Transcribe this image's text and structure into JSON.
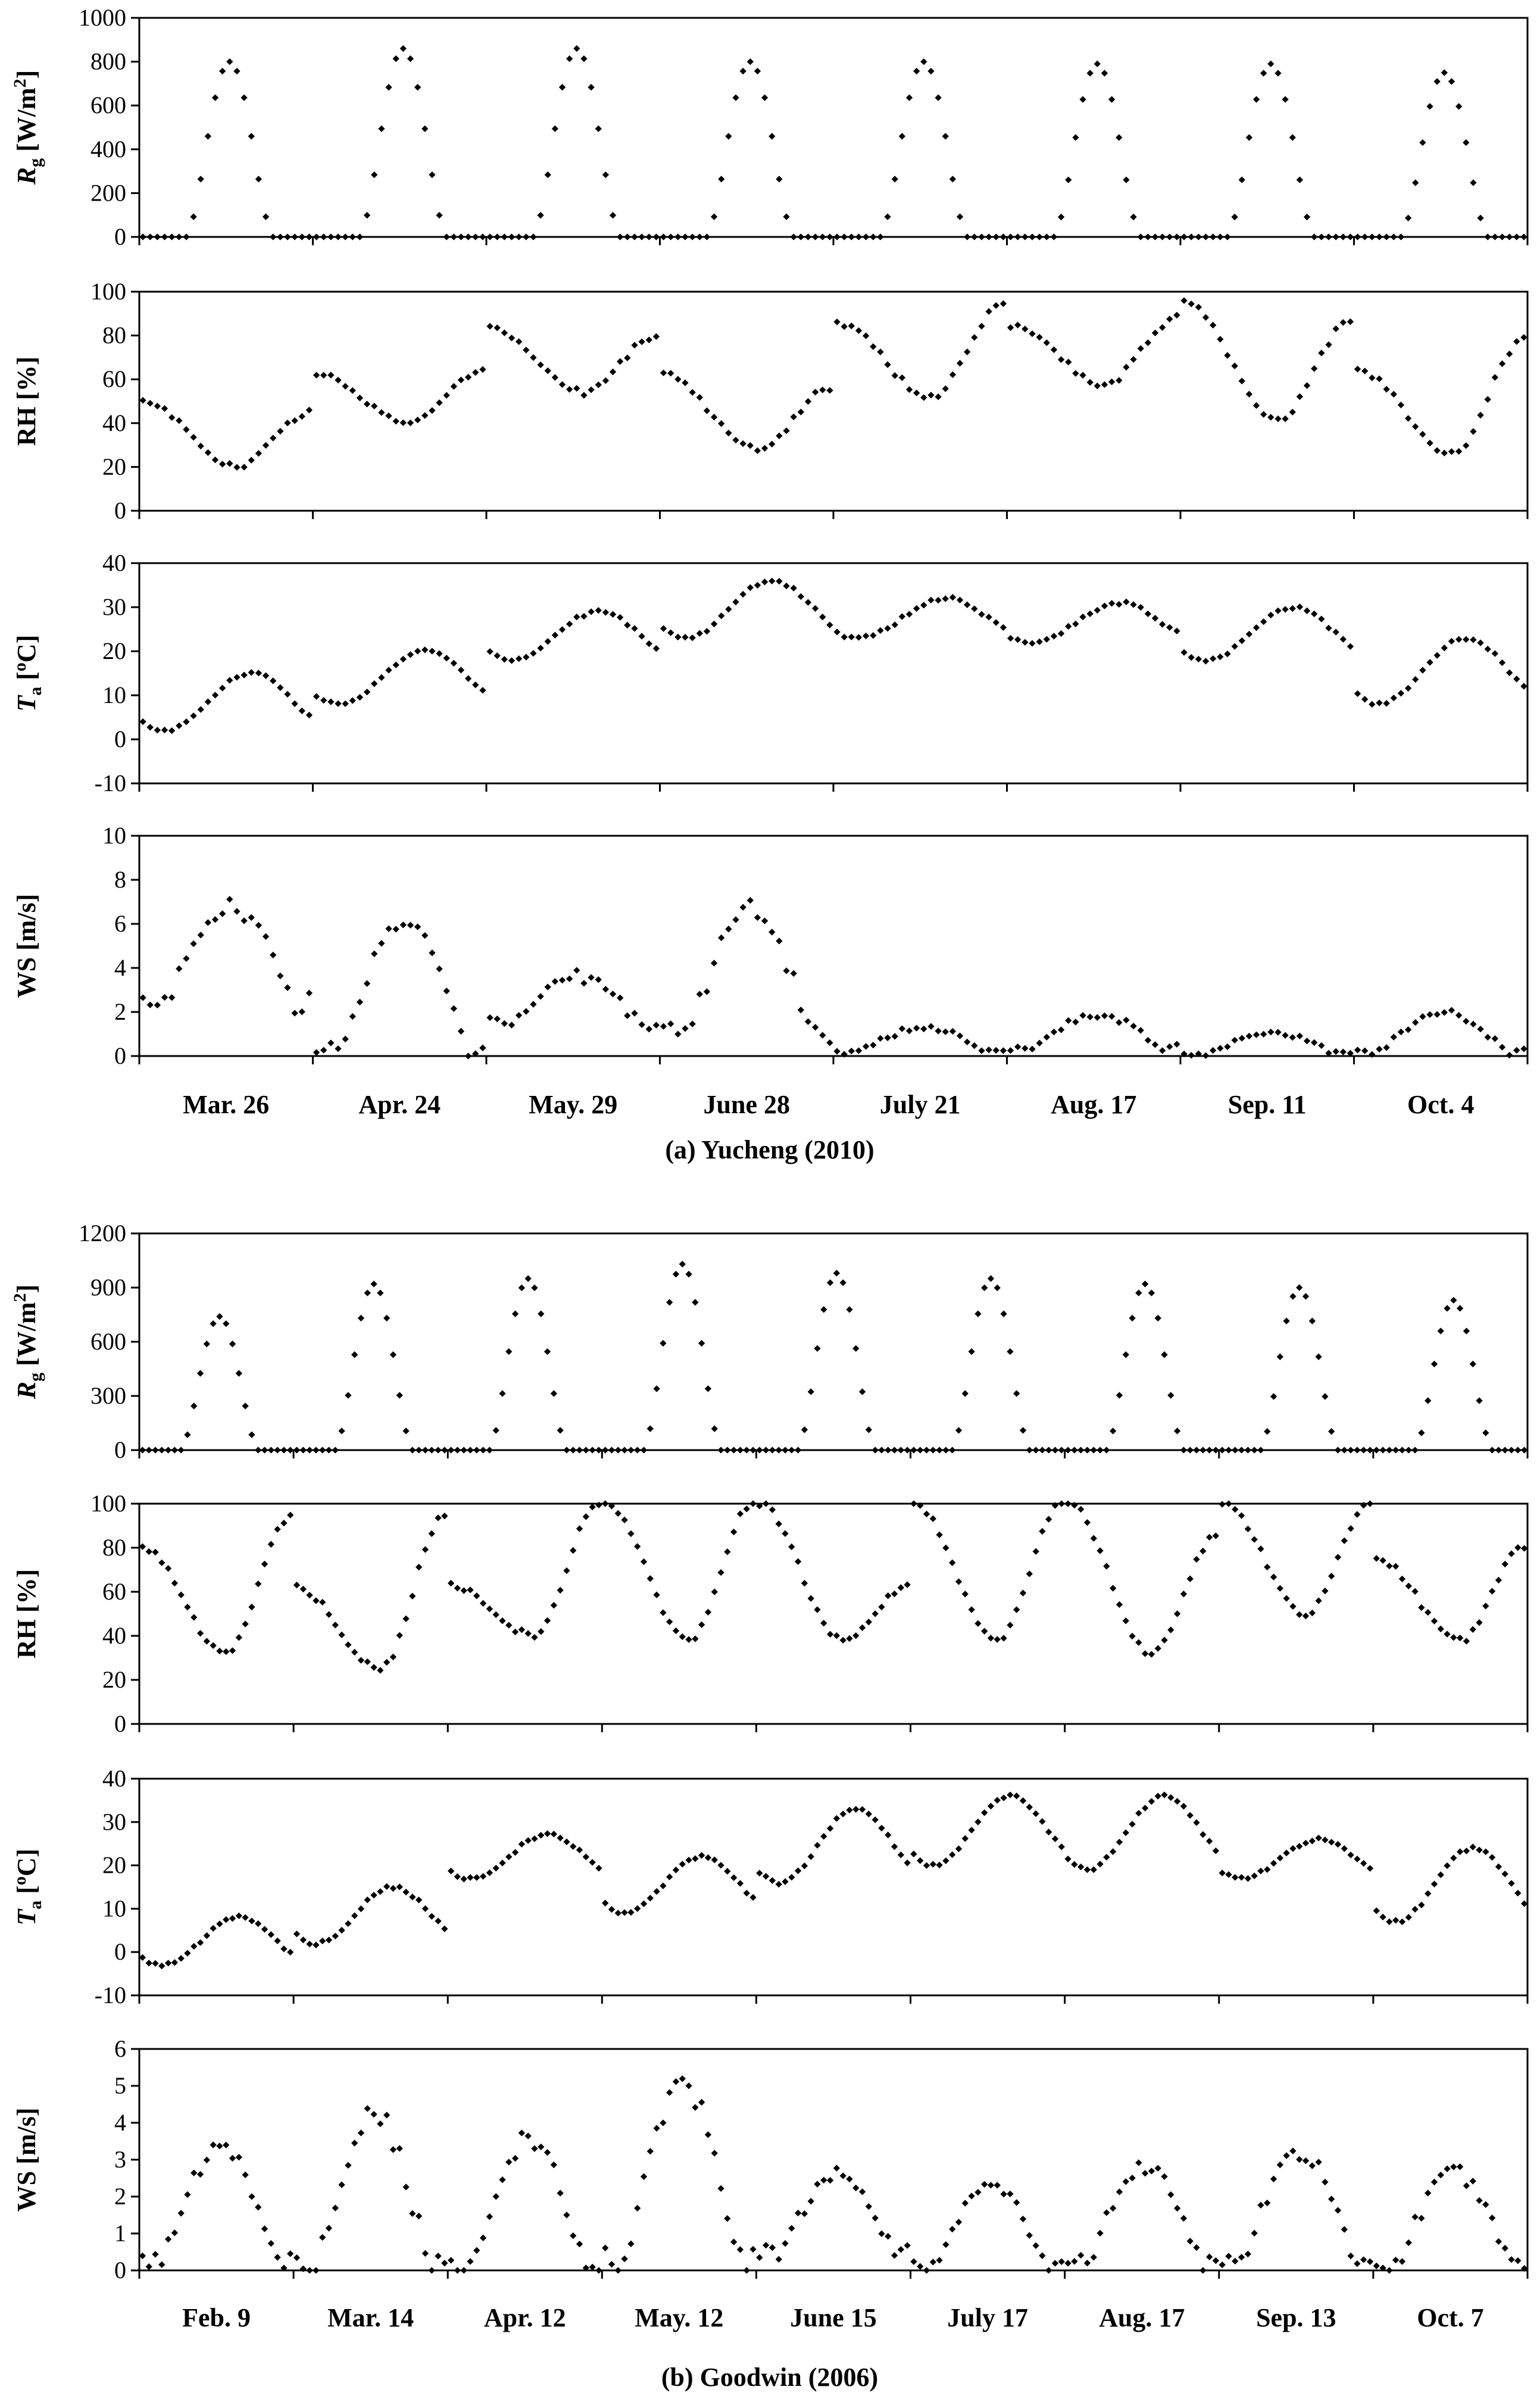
{
  "chart_data": [
    {
      "type": "scatter",
      "title": "(a) Yucheng (2010)",
      "day_labels": [
        "Mar. 26",
        "Apr. 24",
        "May. 29",
        "June 28",
        "July 21",
        "Aug. 17",
        "Sep. 11",
        "Oct. 4"
      ],
      "x": "hour of record (8 days × 24 h)",
      "panels": [
        {
          "key": "rg",
          "ylabel_main": "R",
          "ylabel_sub": "g",
          "ylabel_unit": " [W/m",
          "ylabel_sup": "2",
          "ylabel_close": "]",
          "ylim": [
            0,
            1000
          ],
          "yticks": [
            "0",
            "200",
            "400",
            "600",
            "800",
            "1000"
          ],
          "series": [
            {
              "name": "Rg",
              "daily_peaks": [
                800,
                860,
                860,
                800,
                800,
                790,
                790,
                750
              ]
            }
          ]
        },
        {
          "key": "rh",
          "ylabel_text": "RH [%]",
          "ylim": [
            0,
            100
          ],
          "yticks": [
            "0",
            "20",
            "40",
            "60",
            "80",
            "100"
          ],
          "series": [
            {
              "name": "RH",
              "daily_start": [
                50,
                62,
                83,
                62,
                86,
                85,
                96,
                64
              ],
              "daily_min": [
                20,
                40,
                54,
                28,
                52,
                58,
                42,
                26
              ],
              "daily_end": [
                45,
                64,
                80,
                56,
                94,
                88,
                86,
                78
              ]
            }
          ]
        },
        {
          "key": "ta",
          "ylabel_main": "T",
          "ylabel_sub": "a",
          "ylabel_unit": " [",
          "ylabel_sup": "o",
          "ylabel_close": "C]",
          "ylim": [
            -10,
            40
          ],
          "yticks": [
            "-10",
            "0",
            "10",
            "20",
            "30",
            "40"
          ],
          "series": [
            {
              "name": "Ta",
              "daily_min": [
                2,
                8,
                18,
                23,
                23,
                22,
                18,
                8
              ],
              "daily_max": [
                15,
                20,
                29,
                36,
                32,
                31,
                30,
                23
              ]
            }
          ]
        },
        {
          "key": "ws",
          "ylabel_text": "WS [m/s]",
          "ylim": [
            0,
            10
          ],
          "yticks": [
            "0",
            "2",
            "4",
            "6",
            "8",
            "10"
          ],
          "series": [
            {
              "name": "WS",
              "daily_peak": [
                6.7,
                6.0,
                3.6,
                6.6,
                1.3,
                1.9,
                1.1,
                2.0
              ],
              "daily_base": [
                2.5,
                0.2,
                1.5,
                1.0,
                0.2,
                0.4,
                0.1,
                0.2
              ]
            }
          ]
        }
      ]
    },
    {
      "type": "scatter",
      "title": "(b) Goodwin (2006)",
      "day_labels": [
        "Feb. 9",
        "Mar. 14",
        "Apr. 12",
        "May. 12",
        "June 15",
        "July 17",
        "Aug. 17",
        "Sep. 13",
        "Oct. 7"
      ],
      "x": "hour of record (9 days × 24 h)",
      "panels": [
        {
          "key": "rg",
          "ylabel_main": "R",
          "ylabel_sub": "g",
          "ylabel_unit": " [W/m",
          "ylabel_sup": "2",
          "ylabel_close": "]",
          "ylim": [
            0,
            1200
          ],
          "yticks": [
            "0",
            "300",
            "600",
            "900",
            "1200"
          ],
          "series": [
            {
              "name": "Rg",
              "daily_peaks": [
                740,
                920,
                950,
                1030,
                980,
                950,
                920,
                900,
                830
              ]
            }
          ]
        },
        {
          "key": "rh",
          "ylabel_text": "RH [%]",
          "ylim": [
            0,
            100
          ],
          "yticks": [
            "0",
            "20",
            "40",
            "60",
            "80",
            "100"
          ],
          "series": [
            {
              "name": "RH",
              "daily_start": [
                80,
                62,
                63,
                100,
                100,
                100,
                100,
                100,
                75
              ],
              "daily_min": [
                32,
                25,
                40,
                38,
                38,
                38,
                32,
                50,
                38
              ],
              "daily_end": [
                94,
                94,
                100,
                100,
                62,
                100,
                85,
                100,
                80
              ]
            }
          ]
        },
        {
          "key": "ta",
          "ylabel_main": "T",
          "ylabel_sub": "a",
          "ylabel_unit": " [",
          "ylabel_sup": "o",
          "ylabel_close": "C]",
          "ylim": [
            -10,
            40
          ],
          "yticks": [
            "-10",
            "0",
            "10",
            "20",
            "30",
            "40"
          ],
          "series": [
            {
              "name": "Ta",
              "daily_min": [
                -3,
                2,
                17,
                9,
                16,
                20,
                19,
                17,
                7
              ],
              "daily_max": [
                8,
                15,
                27,
                22,
                33,
                36,
                36,
                26,
                24
              ]
            }
          ]
        },
        {
          "key": "ws",
          "ylabel_text": "WS [m/s]",
          "ylim": [
            0,
            6
          ],
          "yticks": [
            "0",
            "1",
            "2",
            "3",
            "4",
            "5",
            "6"
          ],
          "series": [
            {
              "name": "WS",
              "daily_peak": [
                3.3,
                4.2,
                3.5,
                5.0,
                2.6,
                2.3,
                2.8,
                3.2,
                2.7
              ],
              "daily_base": [
                0.3,
                0.1,
                0.1,
                0.2,
                0.5,
                0.1,
                0.2,
                0.2,
                0.1
              ]
            }
          ]
        }
      ]
    }
  ]
}
